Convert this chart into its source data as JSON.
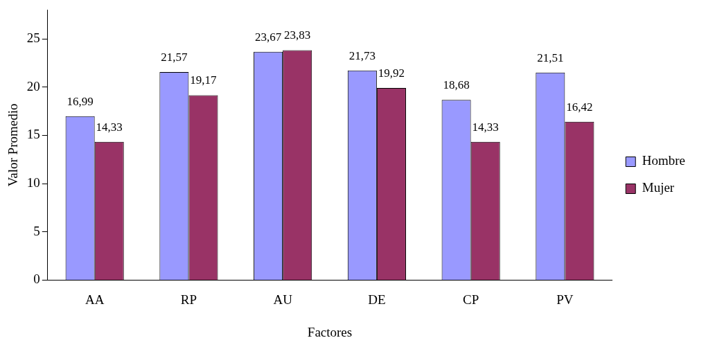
{
  "chart_data": {
    "type": "bar",
    "xlabel": "Factores",
    "ylabel": "Valor Promedio",
    "categories": [
      "AA",
      "RP",
      "AU",
      "DE",
      "CP",
      "PV"
    ],
    "series": [
      {
        "name": "Hombre",
        "color": "#9999ff",
        "values": [
          16.99,
          21.57,
          23.67,
          21.73,
          18.68,
          21.51
        ],
        "value_labels": [
          "16,99",
          "21,57",
          "23,67",
          "21,73",
          "18,68",
          "21,51"
        ]
      },
      {
        "name": "Mujer",
        "color": "#993366",
        "values": [
          14.33,
          19.17,
          23.83,
          19.92,
          14.33,
          16.42
        ],
        "value_labels": [
          "14,33",
          "19,17",
          "23,83",
          "19,92",
          "14,33",
          "16,42"
        ]
      }
    ],
    "ylim": [
      0,
      28
    ],
    "yticks": [
      0,
      5,
      10,
      15,
      20,
      25
    ],
    "grid": false,
    "legend": "right"
  }
}
